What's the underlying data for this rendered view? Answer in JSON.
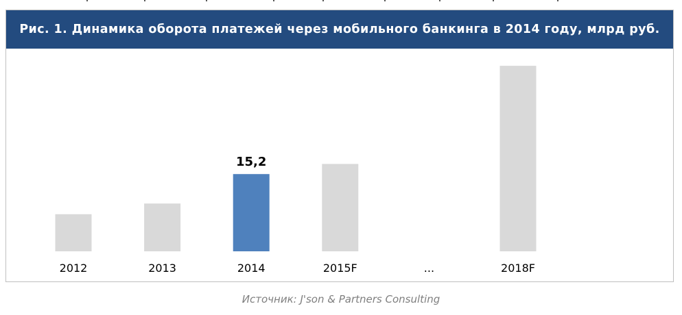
{
  "figure": {
    "title": "Рис. 1. Динамика оборота платежей через мобильного банкинга в 2014 году, млрд руб."
  },
  "chart_data": {
    "type": "bar",
    "categories": [
      "2012",
      "2013",
      "2014",
      "2015F",
      "...",
      "2018F"
    ],
    "values": [
      7.3,
      9.4,
      15.2,
      17.2,
      null,
      36.5
    ],
    "data_labels": [
      null,
      null,
      "15,2",
      null,
      null,
      null
    ],
    "highlight_index": 2,
    "highlight_color": "#4f81bd",
    "bar_color": "#d9d9d9",
    "title": "Рис. 1. Динамика оборота платежей через мобильного банкинга в 2014 году, млрд руб.",
    "xlabel": "",
    "ylabel": "",
    "ylim": [
      0,
      38
    ],
    "grid": false,
    "legend": "none"
  },
  "source": {
    "text": "Источник: J'son & Partners Consulting"
  },
  "colors": {
    "title_bar": "#234b7f",
    "title_text": "#ffffff",
    "frame_border": "#bfbfbf",
    "source_text": "#7f7f7f"
  }
}
